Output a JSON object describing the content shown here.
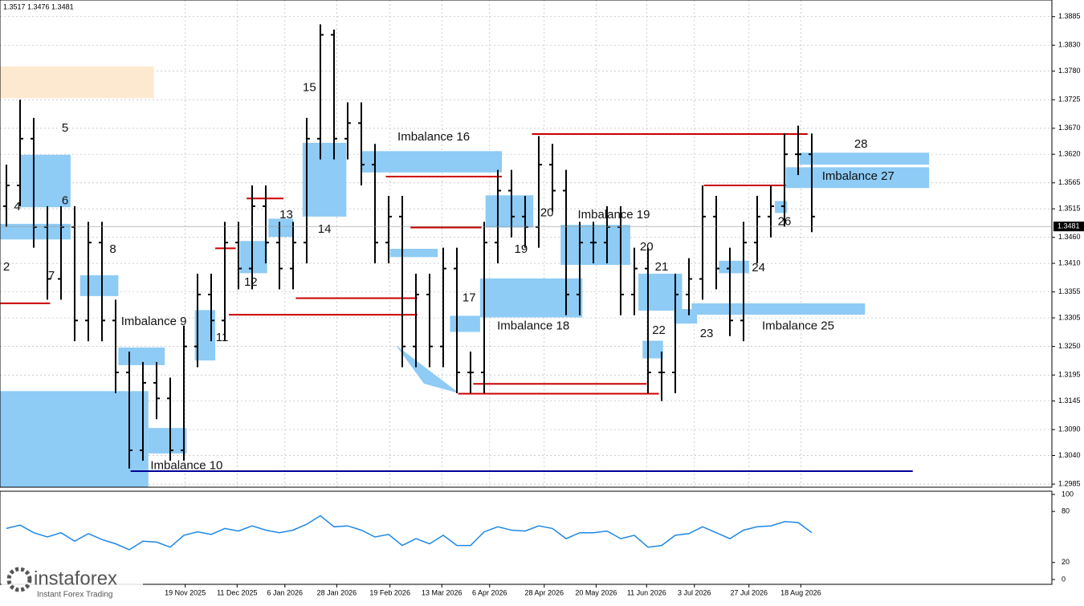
{
  "chart_data": {
    "type": "ohlc",
    "header": "1.3517 1.3476 1.3481",
    "xlim": [
      -0.47,
      76.59
    ],
    "ylim": [
      1.2979,
      1.3917
    ],
    "open": [
      1.352,
      1.356,
      1.365,
      1.348,
      1.338,
      1.348,
      1.33,
      1.345,
      1.33,
      1.32,
      1.305,
      1.318,
      1.315,
      1.305,
      1.325,
      1.335,
      1.33,
      1.345,
      1.34,
      1.352,
      1.345,
      1.34,
      1.345,
      1.365,
      1.385,
      1.365,
      1.368,
      1.36,
      1.345,
      1.35,
      1.325,
      1.335,
      1.325,
      1.34,
      1.32,
      1.32,
      1.345,
      1.355,
      1.35,
      1.348,
      1.36,
      1.355,
      1.335,
      1.345,
      1.345,
      1.348,
      1.335,
      1.34,
      1.32,
      1.32,
      1.335,
      1.338,
      1.35,
      1.34,
      1.33,
      1.345,
      1.35,
      1.352,
      1.362,
      1.362
    ],
    "high": [
      1.36,
      1.3725,
      1.369,
      1.352,
      1.352,
      1.352,
      1.349,
      1.349,
      1.334,
      1.324,
      1.322,
      1.322,
      1.319,
      1.329,
      1.339,
      1.339,
      1.349,
      1.349,
      1.356,
      1.356,
      1.349,
      1.349,
      1.369,
      1.387,
      1.386,
      1.372,
      1.372,
      1.364,
      1.354,
      1.354,
      1.339,
      1.339,
      1.344,
      1.344,
      1.324,
      1.349,
      1.359,
      1.359,
      1.354,
      1.3655,
      1.364,
      1.359,
      1.349,
      1.349,
      1.352,
      1.352,
      1.344,
      1.344,
      1.324,
      1.339,
      1.342,
      1.356,
      1.354,
      1.344,
      1.349,
      1.354,
      1.356,
      1.366,
      1.3675,
      1.366
    ],
    "low": [
      1.348,
      1.352,
      1.344,
      1.334,
      1.334,
      1.326,
      1.326,
      1.326,
      1.316,
      1.3015,
      1.303,
      1.311,
      1.303,
      1.303,
      1.321,
      1.326,
      1.326,
      1.336,
      1.336,
      1.341,
      1.336,
      1.336,
      1.341,
      1.361,
      1.361,
      1.361,
      1.356,
      1.341,
      1.341,
      1.321,
      1.321,
      1.321,
      1.321,
      1.316,
      1.316,
      1.316,
      1.341,
      1.346,
      1.344,
      1.344,
      1.351,
      1.331,
      1.331,
      1.341,
      1.341,
      1.331,
      1.331,
      1.316,
      1.3145,
      1.316,
      1.331,
      1.334,
      1.336,
      1.327,
      1.326,
      1.341,
      1.346,
      1.348,
      1.358,
      1.347
    ],
    "close": [
      1.356,
      1.365,
      1.348,
      1.338,
      1.348,
      1.33,
      1.345,
      1.33,
      1.32,
      1.305,
      1.318,
      1.315,
      1.305,
      1.325,
      1.335,
      1.33,
      1.345,
      1.34,
      1.352,
      1.345,
      1.34,
      1.345,
      1.365,
      1.385,
      1.365,
      1.368,
      1.36,
      1.345,
      1.35,
      1.325,
      1.335,
      1.325,
      1.34,
      1.32,
      1.32,
      1.345,
      1.355,
      1.35,
      1.348,
      1.36,
      1.355,
      1.335,
      1.345,
      1.345,
      1.348,
      1.335,
      1.34,
      1.32,
      1.32,
      1.335,
      1.338,
      1.35,
      1.34,
      1.33,
      1.345,
      1.35,
      1.352,
      1.362,
      1.362,
      1.35
    ],
    "current_price": {
      "value": 1.3481,
      "label": "1.3481"
    },
    "yticks": [
      {
        "value": 1.3885,
        "label": "1.3885"
      },
      {
        "value": 1.383,
        "label": "1.3830"
      },
      {
        "value": 1.378,
        "label": "1.3780"
      },
      {
        "value": 1.3725,
        "label": "1.3725"
      },
      {
        "value": 1.367,
        "label": "1.3670"
      },
      {
        "value": 1.362,
        "label": "1.3620"
      },
      {
        "value": 1.3565,
        "label": "1.3565"
      },
      {
        "value": 1.3515,
        "label": "1.3515"
      },
      {
        "value": 1.346,
        "label": "1.3460"
      },
      {
        "value": 1.341,
        "label": "1.3410"
      },
      {
        "value": 1.3355,
        "label": "1.3355"
      },
      {
        "value": 1.3305,
        "label": "1.3305"
      },
      {
        "value": 1.325,
        "label": "1.3250"
      },
      {
        "value": 1.3195,
        "label": "1.3195"
      },
      {
        "value": 1.3145,
        "label": "1.3145"
      },
      {
        "value": 1.309,
        "label": "1.3090"
      },
      {
        "value": 1.304,
        "label": "1.3040"
      },
      {
        "value": 1.2985,
        "label": "1.2985"
      }
    ],
    "xticks": [
      {
        "value": 13.1,
        "label": "19 Nov 2025"
      },
      {
        "value": 16.9,
        "label": "11 Dec 2025"
      },
      {
        "value": 20.4,
        "label": "6 Jan 2026"
      },
      {
        "value": 24.2,
        "label": "28 Jan 2026"
      },
      {
        "value": 28.1,
        "label": "19 Feb 2026"
      },
      {
        "value": 31.9,
        "label": "13 Mar 2026"
      },
      {
        "value": 35.4,
        "label": "6 Apr 2026"
      },
      {
        "value": 39.4,
        "label": "28 Apr 2026"
      },
      {
        "value": 43.2,
        "label": "20 May 2026"
      },
      {
        "value": 46.9,
        "label": "11 Jun 2026"
      },
      {
        "value": 50.4,
        "label": "3 Jul 2026"
      },
      {
        "value": 54.4,
        "label": "27 Jul 2026"
      },
      {
        "value": 58.2,
        "label": "18 Aug 2026"
      }
    ],
    "zones": [
      {
        "from": -0.5,
        "to": 10.8,
        "top": 1.3789,
        "bottom": 1.3728,
        "color": "#fde9d0"
      },
      {
        "from": 1.0,
        "to": 4.7,
        "top": 1.3619,
        "bottom": 1.3518,
        "color": "#8ecbf5"
      },
      {
        "from": -0.5,
        "to": 4.7,
        "top": 1.3486,
        "bottom": 1.3456,
        "color": "#8ecbf5"
      },
      {
        "from": 5.4,
        "to": 8.2,
        "top": 1.3387,
        "bottom": 1.3347,
        "color": "#8ecbf5"
      },
      {
        "from": 8.2,
        "to": 11.6,
        "top": 1.3248,
        "bottom": 1.3214,
        "color": "#8ecbf5"
      },
      {
        "from": -0.5,
        "to": 10.4,
        "top": 1.3164,
        "bottom": 1.2979,
        "color": "#8ecbf5"
      },
      {
        "from": 10.4,
        "to": 13.2,
        "top": 1.3093,
        "bottom": 1.3044,
        "color": "#8ecbf5"
      },
      {
        "from": 13.8,
        "to": 15.3,
        "top": 1.332,
        "bottom": 1.3223,
        "color": "#8ecbf5"
      },
      {
        "from": 17.1,
        "to": 19.1,
        "top": 1.3453,
        "bottom": 1.3391,
        "color": "#8ecbf5"
      },
      {
        "from": 19.2,
        "to": 21.0,
        "top": 1.3496,
        "bottom": 1.3461,
        "color": "#8ecbf5"
      },
      {
        "from": 21.7,
        "to": 24.9,
        "top": 1.3642,
        "bottom": 1.35,
        "color": "#8ecbf5"
      },
      {
        "from": 26.0,
        "to": 36.3,
        "top": 1.3626,
        "bottom": 1.3585,
        "color": "#8ecbf5"
      },
      {
        "from": 28.1,
        "to": 31.6,
        "top": 1.3438,
        "bottom": 1.3422,
        "color": "#8ecbf5"
      },
      {
        "from": 32.5,
        "to": 34.7,
        "top": 1.3309,
        "bottom": 1.3278,
        "color": "#8ecbf5"
      },
      {
        "from": 34.7,
        "to": 42.2,
        "top": 1.3381,
        "bottom": 1.3306,
        "color": "#8ecbf5"
      },
      {
        "from": 35.1,
        "to": 38.6,
        "top": 1.3541,
        "bottom": 1.3479,
        "color": "#8ecbf5"
      },
      {
        "from": 40.6,
        "to": 45.7,
        "top": 1.3484,
        "bottom": 1.3407,
        "color": "#8ecbf5"
      },
      {
        "from": 46.3,
        "to": 49.5,
        "top": 1.339,
        "bottom": 1.3319,
        "color": "#8ecbf5"
      },
      {
        "from": 46.6,
        "to": 48.1,
        "top": 1.3261,
        "bottom": 1.3227,
        "color": "#8ecbf5"
      },
      {
        "from": 48.9,
        "to": 50.6,
        "top": 1.3322,
        "bottom": 1.3294,
        "color": "#8ecbf5"
      },
      {
        "from": 50.2,
        "to": 62.9,
        "top": 1.3333,
        "bottom": 1.3311,
        "color": "#8ecbf5"
      },
      {
        "from": 52.2,
        "to": 54.4,
        "top": 1.3415,
        "bottom": 1.3391,
        "color": "#8ecbf5"
      },
      {
        "from": 56.3,
        "to": 57.2,
        "top": 1.353,
        "bottom": 1.3507,
        "color": "#8ecbf5"
      },
      {
        "from": 57.1,
        "to": 67.6,
        "top": 1.3595,
        "bottom": 1.3555,
        "color": "#8ecbf5"
      },
      {
        "from": 58.1,
        "to": 67.6,
        "top": 1.3623,
        "bottom": 1.36,
        "color": "#8ecbf5"
      }
    ],
    "levels": [
      {
        "price": 1.3333,
        "from": -0.5,
        "to": 3.2,
        "color": "#cc0000"
      },
      {
        "price": 1.3439,
        "from": 15.3,
        "to": 16.8,
        "color": "#cc0000"
      },
      {
        "price": 1.3535,
        "from": 17.6,
        "to": 20.3,
        "color": "#cc0000"
      },
      {
        "price": 1.3311,
        "from": 16.3,
        "to": 30.1,
        "color": "#cc0000"
      },
      {
        "price": 1.3343,
        "from": 21.2,
        "to": 30.1,
        "color": "#cc0000"
      },
      {
        "price": 1.3577,
        "from": 27.8,
        "to": 36.3,
        "color": "#cc0000"
      },
      {
        "price": 1.3479,
        "from": 29.6,
        "to": 34.8,
        "color": "#cc0000"
      },
      {
        "price": 1.3178,
        "from": 34.2,
        "to": 46.9,
        "color": "#cc0000"
      },
      {
        "price": 1.3159,
        "from": 33.1,
        "to": 47.8,
        "color": "#cc0000"
      },
      {
        "price": 1.3659,
        "from": 38.5,
        "to": 58.7,
        "color": "#cc0000"
      },
      {
        "price": 1.356,
        "from": 51.1,
        "to": 57.1,
        "color": "#cc0000"
      },
      {
        "price": 1.301,
        "from": 9.1,
        "to": 66.4,
        "color": "#000099"
      }
    ],
    "annotations": [
      {
        "text": "2",
        "x": 0,
        "y": 1.3402
      },
      {
        "text": "4",
        "x": 0.8,
        "y": 1.3518
      },
      {
        "text": "5",
        "x": 4.3,
        "y": 1.367
      },
      {
        "text": "6",
        "x": 4.3,
        "y": 1.353
      },
      {
        "text": "7",
        "x": 3.3,
        "y": 1.3385
      },
      {
        "text": "8",
        "x": 7.8,
        "y": 1.3436
      },
      {
        "text": "Imbalance 9",
        "x": 10.8,
        "y": 1.3297
      },
      {
        "text": "Imbalance 10",
        "x": 13.2,
        "y": 1.302
      },
      {
        "text": "11",
        "x": 15.8,
        "y": 1.3266
      },
      {
        "text": "12",
        "x": 17.9,
        "y": 1.3373
      },
      {
        "text": "13",
        "x": 20.5,
        "y": 1.3503
      },
      {
        "text": "14",
        "x": 23.3,
        "y": 1.3475
      },
      {
        "text": "15",
        "x": 22.2,
        "y": 1.3748
      },
      {
        "text": "Imbalance 16",
        "x": 31.3,
        "y": 1.3653
      },
      {
        "text": "17",
        "x": 33.9,
        "y": 1.3343
      },
      {
        "text": "Imbalance 18",
        "x": 38.6,
        "y": 1.3289
      },
      {
        "text": "19",
        "x": 37.7,
        "y": 1.3436
      },
      {
        "text": "20",
        "x": 39.6,
        "y": 1.3507
      },
      {
        "text": "Imbalance 19",
        "x": 44.5,
        "y": 1.3503
      },
      {
        "text": "20",
        "x": 46.9,
        "y": 1.3441
      },
      {
        "text": "21",
        "x": 48,
        "y": 1.3402
      },
      {
        "text": "22",
        "x": 47.8,
        "y": 1.328
      },
      {
        "text": "23",
        "x": 51.3,
        "y": 1.3274
      },
      {
        "text": "24",
        "x": 55.1,
        "y": 1.3401
      },
      {
        "text": "Imbalance 25",
        "x": 58,
        "y": 1.3289
      },
      {
        "text": "26",
        "x": 57,
        "y": 1.349
      },
      {
        "text": "Imbalance 27",
        "x": 62.4,
        "y": 1.3577
      },
      {
        "text": "28",
        "x": 62.6,
        "y": 1.3639
      }
    ],
    "oscillator": {
      "color": "#1e88e5",
      "ylim": [
        0,
        100
      ],
      "yticks": [
        100,
        80,
        20,
        0
      ],
      "values": [
        60,
        64,
        55,
        50,
        55,
        45,
        54,
        47,
        42,
        35,
        45,
        44,
        38,
        52,
        56,
        53,
        60,
        57,
        63,
        58,
        55,
        58,
        65,
        75,
        62,
        63,
        58,
        50,
        53,
        40,
        48,
        42,
        52,
        40,
        40,
        56,
        62,
        58,
        57,
        63,
        60,
        48,
        55,
        55,
        57,
        48,
        52,
        38,
        40,
        52,
        54,
        62,
        55,
        48,
        58,
        62,
        63,
        68,
        67,
        55
      ]
    },
    "logo": {
      "name": "instaforex",
      "tagline": "Instant Forex Trading"
    }
  }
}
